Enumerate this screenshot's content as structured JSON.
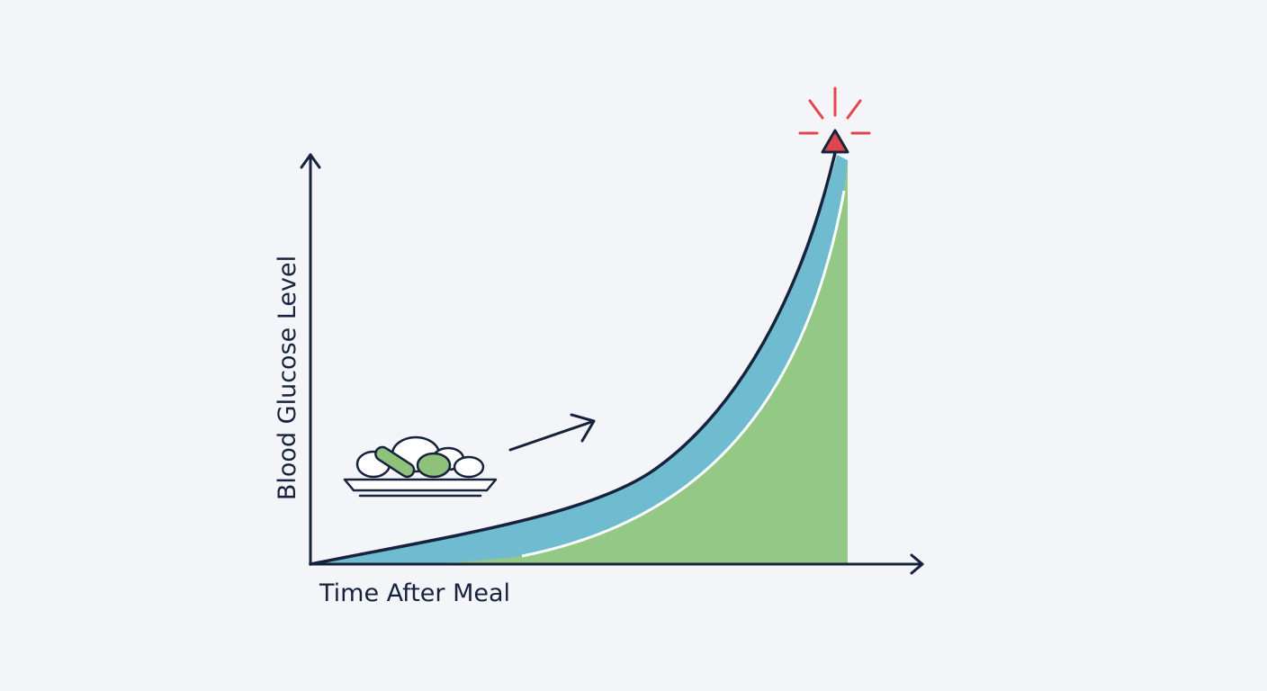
{
  "diagram": {
    "y_axis_label": "Blood Glucose Level",
    "x_axis_label": "Time After Meal",
    "icons": [
      "meal-plate-icon",
      "trend-arrow-icon",
      "warning-triangle-icon"
    ],
    "colors": {
      "background": "#f3f5f8",
      "axis": "#17223d",
      "blue_band": "#6fbcd0",
      "green_area": "#93c984",
      "warning": "#e0474c",
      "food_green": "#8ec27b"
    }
  }
}
